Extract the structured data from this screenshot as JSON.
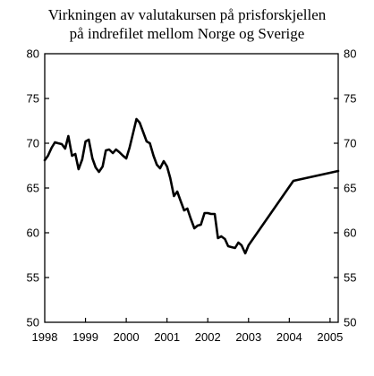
{
  "chart_data": {
    "type": "line",
    "title_lines": [
      "Virkningen av valutakursen på prisforskjellen",
      "på indrefilet mellom Norge og Sverige"
    ],
    "xlabel": "",
    "ylabel": "",
    "xlim": [
      1998,
      2005.2
    ],
    "ylim": [
      50,
      80
    ],
    "x_ticks": [
      1998,
      1999,
      2000,
      2001,
      2002,
      2003,
      2004,
      2005
    ],
    "x_tick_labels": [
      "1998",
      "1999",
      "2000",
      "2001",
      "2002",
      "2003",
      "2004",
      "2005"
    ],
    "y_ticks": [
      50,
      55,
      60,
      65,
      70,
      75,
      80
    ],
    "y_tick_labels": [
      "50",
      "55",
      "60",
      "65",
      "70",
      "75",
      "80"
    ],
    "y_axis_sides": [
      "left",
      "right"
    ],
    "grid": false,
    "line_color": "#000000",
    "series": [
      {
        "x": [
          1998.0,
          1998.08,
          1998.17,
          1998.25,
          1998.33,
          1998.42,
          1998.5,
          1998.58,
          1998.67,
          1998.75,
          1998.83,
          1998.92,
          1999.0,
          1999.08,
          1999.17,
          1999.25,
          1999.33,
          1999.42,
          1999.5,
          1999.58,
          1999.67,
          1999.75,
          1999.83,
          1999.92,
          2000.0,
          2000.08,
          2000.17,
          2000.25,
          2000.33,
          2000.42,
          2000.5,
          2000.58,
          2000.67,
          2000.75,
          2000.83,
          2000.92,
          2001.0,
          2001.08,
          2001.17,
          2001.25,
          2001.33,
          2001.42,
          2001.5,
          2001.58,
          2001.67,
          2001.75,
          2001.83,
          2001.92,
          2002.0,
          2002.08,
          2002.17,
          2002.25,
          2002.33,
          2002.42,
          2002.5,
          2002.58,
          2002.67,
          2002.75,
          2002.83,
          2002.92,
          2003.0,
          2004.1,
          2005.2
        ],
        "values": [
          68.1,
          68.6,
          69.5,
          70.1,
          70.0,
          69.9,
          69.4,
          70.8,
          68.6,
          68.8,
          67.1,
          68.2,
          70.2,
          70.4,
          68.3,
          67.3,
          66.8,
          67.4,
          69.2,
          69.3,
          68.9,
          69.3,
          69.0,
          68.6,
          68.3,
          69.5,
          71.2,
          72.7,
          72.3,
          71.2,
          70.2,
          70.0,
          68.6,
          67.6,
          67.2,
          68.0,
          67.4,
          66.1,
          64.1,
          64.6,
          63.6,
          62.5,
          62.7,
          61.6,
          60.5,
          60.8,
          60.9,
          62.2,
          62.2,
          62.1,
          62.1,
          59.4,
          59.6,
          59.3,
          58.5,
          58.4,
          58.3,
          58.9,
          58.6,
          57.7,
          58.6,
          65.8,
          66.9
        ]
      }
    ]
  }
}
